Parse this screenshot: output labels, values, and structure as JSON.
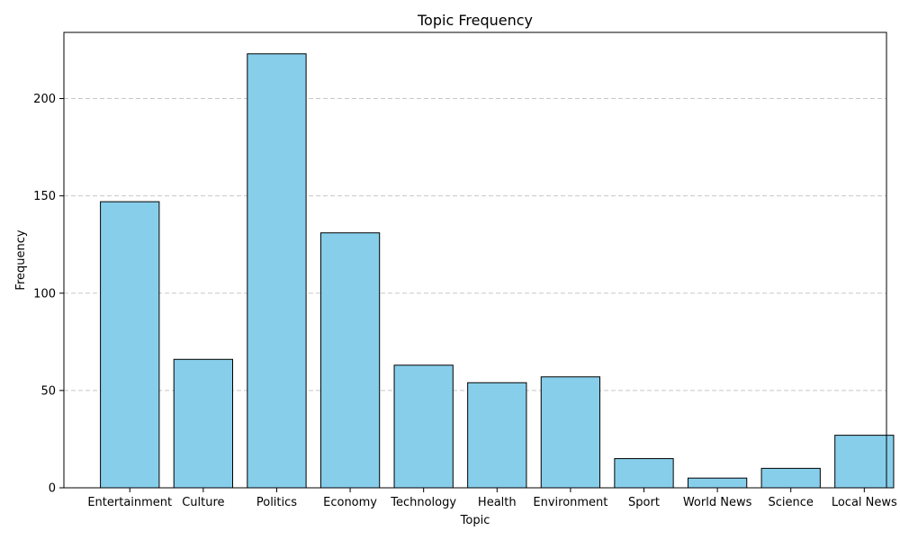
{
  "chart_data": {
    "type": "bar",
    "title": "Topic Frequency",
    "xlabel": "Topic",
    "ylabel": "Frequency",
    "categories": [
      "Entertainment",
      "Culture",
      "Politics",
      "Economy",
      "Technology",
      "Health",
      "Environment",
      "Sport",
      "World News",
      "Science",
      "Local News"
    ],
    "values": [
      147,
      66,
      223,
      131,
      63,
      54,
      57,
      15,
      5,
      10,
      27
    ],
    "ylim": [
      0,
      234
    ],
    "yticks": [
      0,
      50,
      100,
      150,
      200
    ],
    "grid": {
      "axis": "y",
      "style": "dashed"
    },
    "colors": {
      "bar_fill": "#87CEEB",
      "bar_edge": "#000000",
      "grid": "#c8c8c8"
    }
  }
}
